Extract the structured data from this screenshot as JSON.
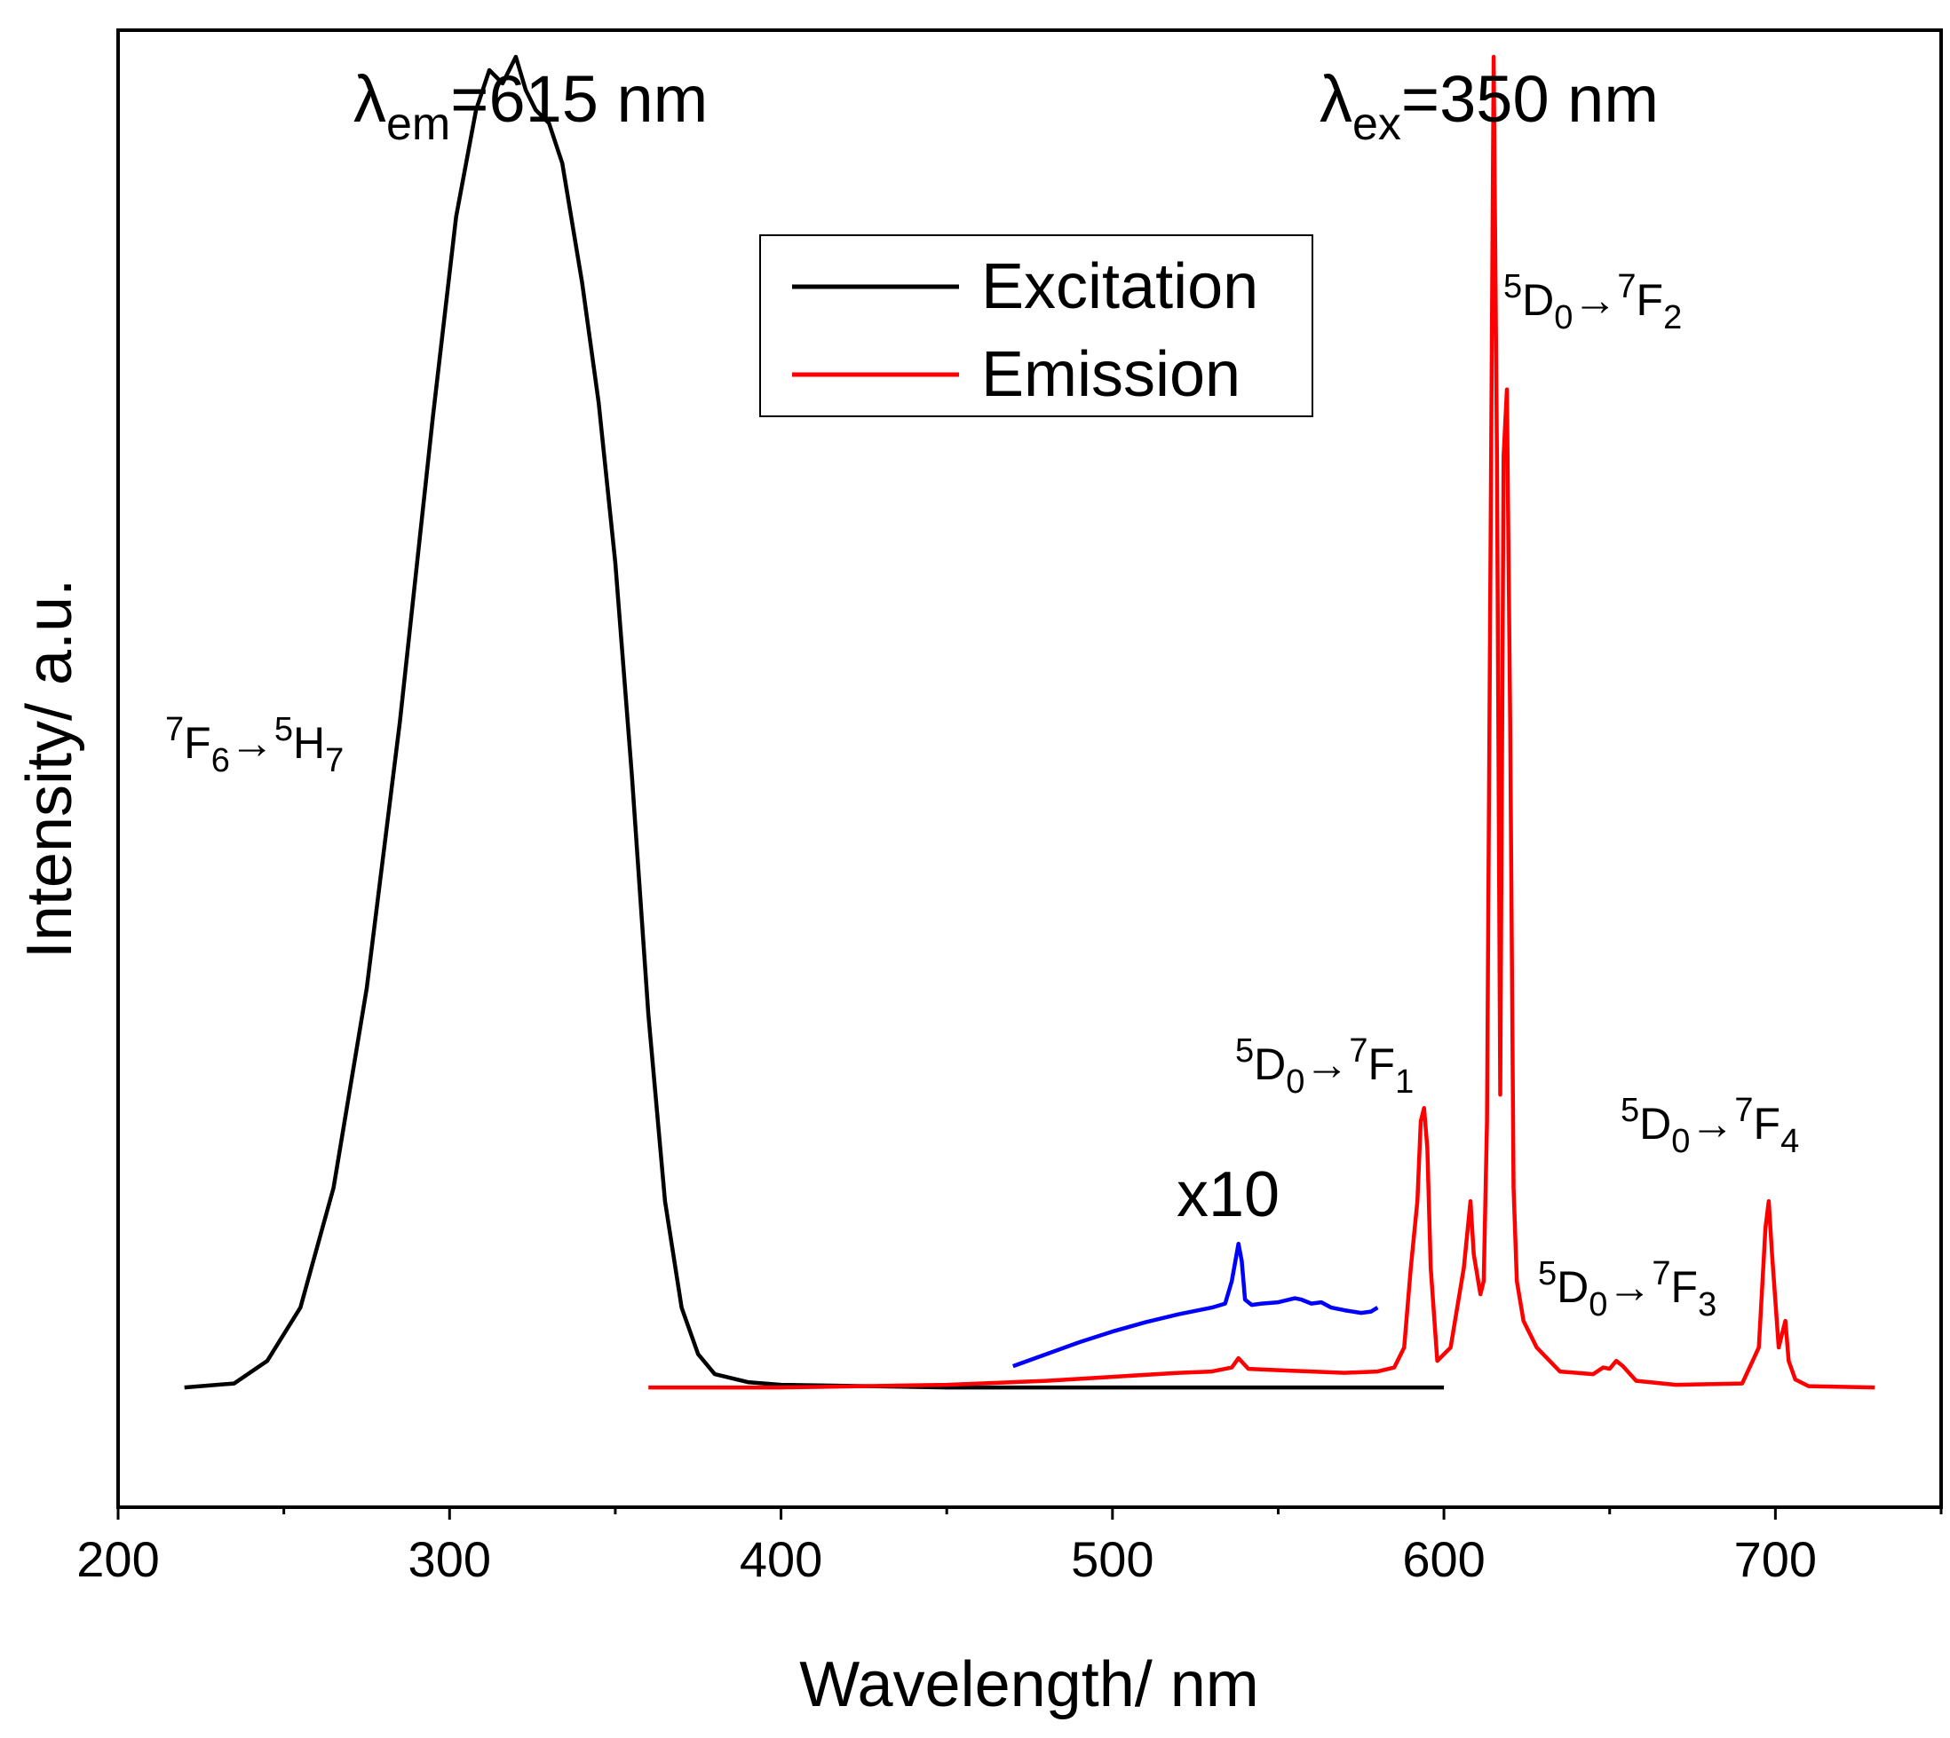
{
  "chart_data": {
    "type": "line",
    "xlabel": "Wavelength/ nm",
    "ylabel": "Intensity/ a.u.",
    "xlim": [
      200,
      750
    ],
    "ylim": [
      -0.09,
      1.02
    ],
    "x_ticks": [
      "200",
      "300",
      "400",
      "500",
      "600",
      "700"
    ],
    "grid": false,
    "legend": {
      "placement": "top-center",
      "entries": [
        "Excitation",
        "Emission"
      ]
    },
    "series": [
      {
        "name": "Excitation",
        "color": "#000000",
        "x": [
          220,
          235,
          245,
          255,
          265,
          275,
          285,
          295,
          302,
          308,
          312,
          316,
          320,
          323,
          326,
          330,
          334,
          340,
          345,
          350,
          355,
          360,
          365,
          370,
          375,
          380,
          390,
          400,
          450,
          500,
          550,
          600
        ],
        "y": [
          0.0,
          0.003,
          0.02,
          0.06,
          0.15,
          0.3,
          0.5,
          0.73,
          0.88,
          0.96,
          0.99,
          0.98,
          1.0,
          0.975,
          0.96,
          0.95,
          0.92,
          0.83,
          0.74,
          0.62,
          0.46,
          0.28,
          0.14,
          0.06,
          0.025,
          0.01,
          0.004,
          0.002,
          0.0,
          0.0,
          0.0,
          0.0
        ]
      },
      {
        "name": "Emission",
        "color": "#ff0000",
        "x": [
          360,
          400,
          450,
          480,
          500,
          520,
          530,
          536,
          538,
          541,
          550,
          560,
          570,
          580,
          585,
          588,
          590,
          592,
          593,
          594,
          595,
          596,
          598,
          602,
          606,
          608,
          609,
          611,
          612,
          613,
          614,
          615,
          616,
          617,
          618,
          619,
          620,
          621,
          622,
          624,
          628,
          635,
          645,
          648,
          650,
          652,
          654,
          658,
          670,
          690,
          695,
          697,
          698,
          699,
          701,
          702,
          703,
          704,
          706,
          710,
          730
        ],
        "y": [
          0.0,
          0.0,
          0.002,
          0.005,
          0.008,
          0.011,
          0.012,
          0.015,
          0.022,
          0.014,
          0.013,
          0.012,
          0.011,
          0.012,
          0.015,
          0.03,
          0.09,
          0.14,
          0.2,
          0.21,
          0.18,
          0.09,
          0.02,
          0.03,
          0.09,
          0.14,
          0.1,
          0.07,
          0.08,
          0.2,
          0.6,
          1.0,
          0.7,
          0.22,
          0.7,
          0.75,
          0.5,
          0.15,
          0.08,
          0.05,
          0.03,
          0.012,
          0.01,
          0.015,
          0.014,
          0.02,
          0.016,
          0.005,
          0.002,
          0.003,
          0.03,
          0.12,
          0.14,
          0.1,
          0.03,
          0.04,
          0.05,
          0.02,
          0.006,
          0.001,
          0.0
        ]
      },
      {
        "name": "",
        "color": "#0000ff",
        "x": [
          470,
          480,
          490,
          500,
          510,
          520,
          530,
          534,
          536,
          538,
          539,
          540,
          542,
          545,
          550,
          555,
          557,
          560,
          563,
          566,
          570,
          575,
          578,
          580
        ],
        "y": [
          0.016,
          0.025,
          0.034,
          0.042,
          0.049,
          0.055,
          0.06,
          0.063,
          0.08,
          0.108,
          0.095,
          0.066,
          0.062,
          0.063,
          0.064,
          0.067,
          0.066,
          0.063,
          0.064,
          0.06,
          0.058,
          0.056,
          0.057,
          0.06
        ]
      }
    ],
    "annotations": {
      "lambda_em": {
        "symbol": "λ",
        "sub": "em",
        "text": "=615 nm"
      },
      "lambda_ex": {
        "symbol": "λ",
        "sub": "ex",
        "text": "=350 nm"
      },
      "excitation_transition": {
        "sup1": "7",
        "a": "F",
        "sub1": "6",
        "arrow": "→",
        "sup2": "5",
        "b": "H",
        "sub2": "7"
      },
      "d0_f1": {
        "sup1": "5",
        "a": "D",
        "sub1": "0",
        "arrow": "→",
        "sup2": "7",
        "b": "F",
        "sub2": "1"
      },
      "d0_f2": {
        "sup1": "5",
        "a": "D",
        "sub1": "0",
        "arrow": "→",
        "sup2": "7",
        "b": "F",
        "sub2": "2"
      },
      "d0_f3": {
        "sup1": "5",
        "a": "D",
        "sub1": "0",
        "arrow": "→",
        "sup2": "7",
        "b": "F",
        "sub2": "3"
      },
      "d0_f4": {
        "sup1": "5",
        "a": "D",
        "sub1": "0",
        "arrow": "→",
        "sup2": "7",
        "b": "F",
        "sub2": "4"
      },
      "magnification": "x10"
    }
  }
}
